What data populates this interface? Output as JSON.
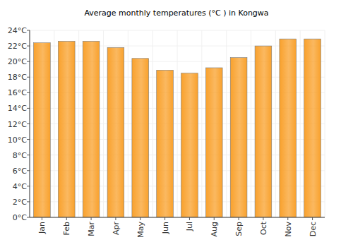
{
  "chart_data": {
    "type": "bar",
    "title": "Average monthly temperatures (°C ) in Kongwa",
    "categories": [
      "Jan",
      "Feb",
      "Mar",
      "Apr",
      "May",
      "Jun",
      "Jul",
      "Aug",
      "Sep",
      "Oct",
      "Nov",
      "Dec"
    ],
    "values": [
      22.4,
      22.6,
      22.6,
      21.8,
      20.4,
      18.9,
      18.5,
      19.2,
      20.5,
      22.0,
      22.9,
      22.9
    ],
    "color": "#f9a12c",
    "ylim": [
      0,
      24
    ],
    "yticks": [
      {
        "value": 0,
        "label": "0°C"
      },
      {
        "value": 2,
        "label": "2°C"
      },
      {
        "value": 4,
        "label": "4°C"
      },
      {
        "value": 6,
        "label": "6°C"
      },
      {
        "value": 8,
        "label": "8°C"
      },
      {
        "value": 10,
        "label": "10°C"
      },
      {
        "value": 12,
        "label": "12°C"
      },
      {
        "value": 14,
        "label": "14°C"
      },
      {
        "value": 16,
        "label": "16°C"
      },
      {
        "value": 18,
        "label": "18°C"
      },
      {
        "value": 20,
        "label": "20°C"
      },
      {
        "value": 22,
        "label": "22°C"
      },
      {
        "value": 24,
        "label": "24°C"
      }
    ],
    "grid": true
  }
}
